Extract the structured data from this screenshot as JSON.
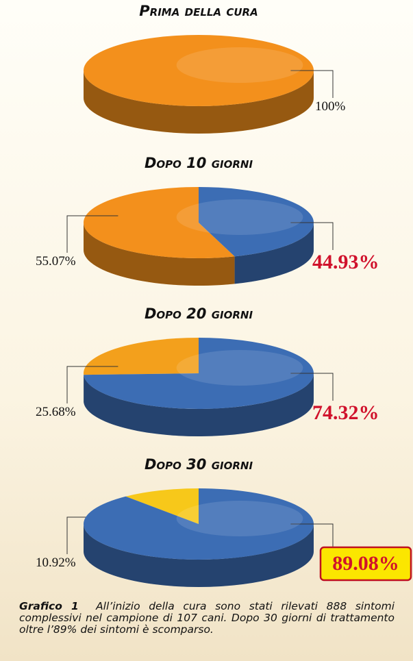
{
  "chart_data": [
    {
      "type": "pie",
      "title": "Prima della cura",
      "values": [
        100
      ],
      "value_labels": [
        "100%"
      ],
      "colors": [
        "#f3901c"
      ],
      "highlight": false,
      "boxed": false
    },
    {
      "type": "pie",
      "title": "Dopo 10 giorni",
      "values": [
        55.07,
        44.93
      ],
      "value_labels": [
        "55.07%",
        "44.93%"
      ],
      "colors": [
        "#f3901c",
        "#3c6db4"
      ],
      "highlight": true,
      "boxed": false
    },
    {
      "type": "pie",
      "title": "Dopo 20 giorni",
      "values": [
        25.68,
        74.32
      ],
      "value_labels": [
        "25.68%",
        "74.32%"
      ],
      "colors": [
        "#f3a01c",
        "#3c6db4"
      ],
      "highlight": true,
      "boxed": false
    },
    {
      "type": "pie",
      "title": "Dopo 30 giorni",
      "values": [
        10.92,
        89.08
      ],
      "value_labels": [
        "10.92%",
        "89.08%"
      ],
      "colors": [
        "#f7c81a",
        "#3c6db4"
      ],
      "highlight": true,
      "boxed": true
    }
  ],
  "caption": {
    "label": "Grafico 1",
    "text": "All’inizio della cura sono stati rilevati 888 sintomi complessivi nel campione di 107 cani. Dopo 30 giorni di trattamento oltre l’89% dei sintomi è scomparso."
  }
}
